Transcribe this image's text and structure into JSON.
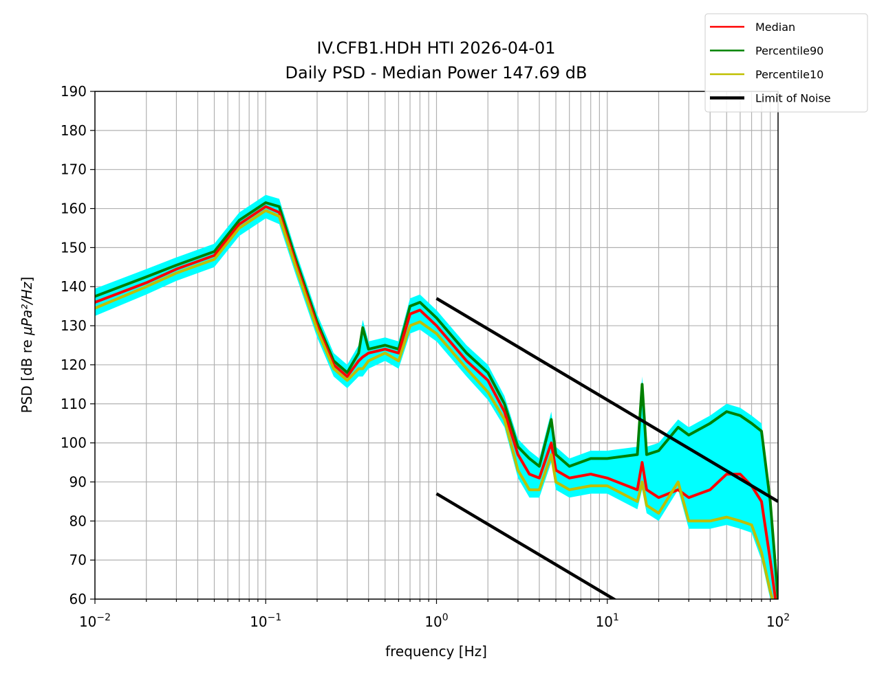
{
  "chart_data": {
    "type": "line",
    "title": [
      "IV.CFB1.HDH HTI 2026-04-01",
      "Daily PSD - Median Power 147.69 dB"
    ],
    "xlabel": "frequency [Hz]",
    "ylabel_prefix": "PSD [dB re ",
    "ylabel_unit": "μPa²/Hz",
    "ylabel_suffix": "]",
    "xscale": "log",
    "xlim": [
      0.01,
      100
    ],
    "ylim": [
      60,
      190
    ],
    "grid": true,
    "legend_position": "top-right (outside)",
    "x_ticks": [
      {
        "v": 0.01,
        "base": "10",
        "exp": "−2"
      },
      {
        "v": 0.1,
        "base": "10",
        "exp": "−1"
      },
      {
        "v": 1,
        "base": "10",
        "exp": "0"
      },
      {
        "v": 10,
        "base": "10",
        "exp": "1"
      },
      {
        "v": 100,
        "base": "10",
        "exp": "2"
      }
    ],
    "y_ticks": [
      60,
      70,
      80,
      90,
      100,
      110,
      120,
      130,
      140,
      150,
      160,
      170,
      180,
      190
    ],
    "x": [
      0.01,
      0.02,
      0.03,
      0.05,
      0.07,
      0.1,
      0.12,
      0.15,
      0.2,
      0.25,
      0.3,
      0.35,
      0.37,
      0.4,
      0.5,
      0.6,
      0.7,
      0.8,
      1.0,
      1.5,
      2,
      2.5,
      3,
      3.5,
      4,
      4.7,
      5,
      6,
      8,
      10,
      15,
      16,
      17,
      20,
      26,
      30,
      40,
      50,
      60,
      70,
      80,
      90,
      100
    ],
    "series": [
      {
        "name": "Percentile90",
        "color": "#008000",
        "values": [
          137.5,
          142.5,
          145.5,
          149,
          157,
          161.5,
          160.5,
          147,
          131,
          121,
          118,
          123,
          129.5,
          124,
          125,
          124,
          135,
          136,
          132,
          123,
          118,
          110,
          99,
          96,
          94,
          106,
          97,
          94,
          96,
          96,
          97,
          115,
          97,
          98,
          104,
          102,
          105,
          108,
          107,
          105,
          103,
          85,
          60
        ]
      },
      {
        "name": "Median",
        "color": "#ff0000",
        "values": [
          136,
          141,
          144.5,
          148,
          156,
          160.5,
          159,
          146,
          130,
          120,
          117,
          121,
          122,
          123,
          124,
          123,
          133,
          134,
          130,
          121,
          116,
          108,
          97,
          92,
          91,
          100,
          93,
          91,
          92,
          91,
          88,
          95,
          88,
          86,
          88,
          86,
          88,
          92,
          92,
          89,
          85,
          70,
          55
        ]
      },
      {
        "name": "Percentile10",
        "color": "#bfbf00",
        "values": [
          134.5,
          140,
          143.5,
          147,
          155,
          159.5,
          158,
          145,
          129,
          119,
          116,
          119,
          119,
          121,
          123,
          121,
          130,
          131,
          128,
          119,
          113,
          106,
          93,
          88,
          88,
          97,
          90,
          88,
          89,
          89,
          85,
          90,
          84,
          82,
          90,
          80,
          80,
          81,
          80,
          79,
          72,
          62,
          55
        ]
      }
    ],
    "envelope": {
      "color": "#00ffff",
      "margin_db": 2
    },
    "noise_limits": {
      "name": "Limit of Noise",
      "color": "#000000",
      "lines": [
        [
          [
            1,
            137
          ],
          [
            100,
            85
          ]
        ],
        [
          [
            1,
            87
          ],
          [
            100,
            35
          ]
        ]
      ]
    }
  }
}
